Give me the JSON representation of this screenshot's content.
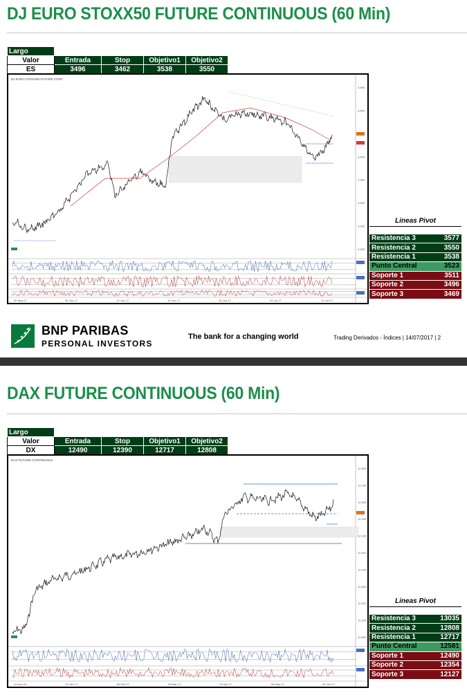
{
  "sections": [
    {
      "title": "DJ EURO STOXX50 FUTURE CONTINUOUS (60 Min)",
      "direction": "Largo",
      "headers": [
        "Valor",
        "Entrada",
        "Stop",
        "Objetivo1",
        "Objetivo2"
      ],
      "row": [
        "ES",
        "3496",
        "3462",
        "3538",
        "3550"
      ],
      "pivot_title": "Lineas Pivot",
      "pivots": [
        {
          "label": "Resistencia 3",
          "value": "3577"
        },
        {
          "label": "Resistencia 2",
          "value": "3550"
        },
        {
          "label": "Resistencia 1",
          "value": "3538"
        },
        {
          "label": "Punto Central",
          "value": "3523"
        },
        {
          "label": "Soporte 1",
          "value": "3511"
        },
        {
          "label": "Soporte 2",
          "value": "3496"
        },
        {
          "label": "Soporte 3",
          "value": "3469"
        }
      ],
      "chart": {
        "header": "DJ EURO STOXX50 FUTURE CONT",
        "price_labels": [
          "3,550",
          "3,500",
          "3,450",
          "3,400",
          "3,350",
          "3,300",
          "3,250",
          "3,200"
        ],
        "date_labels": [
          "30-May-17",
          "05-Jun-17",
          "12-Jun-17",
          "19-Jun-17",
          "26-Jun-17",
          "03-Jul-17",
          "10-Jul-17"
        ]
      }
    },
    {
      "title": "DAX FUTURE CONTINUOUS (60 Min)",
      "direction": "Largo",
      "headers": [
        "Valor",
        "Entrada",
        "Stop",
        "Objetivo1",
        "Objetivo2"
      ],
      "row": [
        "DX",
        "12490",
        "12390",
        "12717",
        "12808"
      ],
      "pivot_title": "Lineas Pivot",
      "pivots": [
        {
          "label": "Resistencia 3",
          "value": "13035"
        },
        {
          "label": "Resistencia 2",
          "value": "12808"
        },
        {
          "label": "Resistencia 1",
          "value": "12717"
        },
        {
          "label": "Punto Central",
          "value": "12581"
        },
        {
          "label": "Soporte 1",
          "value": "12490"
        },
        {
          "label": "Soporte 2",
          "value": "12354"
        },
        {
          "label": "Soporte 3",
          "value": "12127"
        }
      ],
      "chart": {
        "header": "DAX FUTURE CONTINUOUS",
        "price_labels": [
          "12,900",
          "12,700",
          "12,500",
          "12,300",
          "12,100",
          "11,900",
          "11,700",
          "11,500",
          "11,300",
          "11,100",
          "10,900"
        ],
        "date_labels": [
          "11-Nov-16",
          "02-Jan-17",
          "06-Feb-17",
          "06-Mar-17",
          "03-Apr-17",
          "08-May-17",
          "06-Jun-17"
        ]
      }
    }
  ],
  "footer": {
    "brand_line1": "BNP PARIBAS",
    "brand_line2": "PERSONAL INVESTORS",
    "tagline": "The bank for a changing world",
    "info": "Trading Derivados - Índices   |  14/07/2017  |   2"
  },
  "colors": {
    "title_green": "#1a8f4a",
    "table_green": "#003d16",
    "pivot_center": "#3e9a63",
    "support_red": "#7a0d14"
  }
}
